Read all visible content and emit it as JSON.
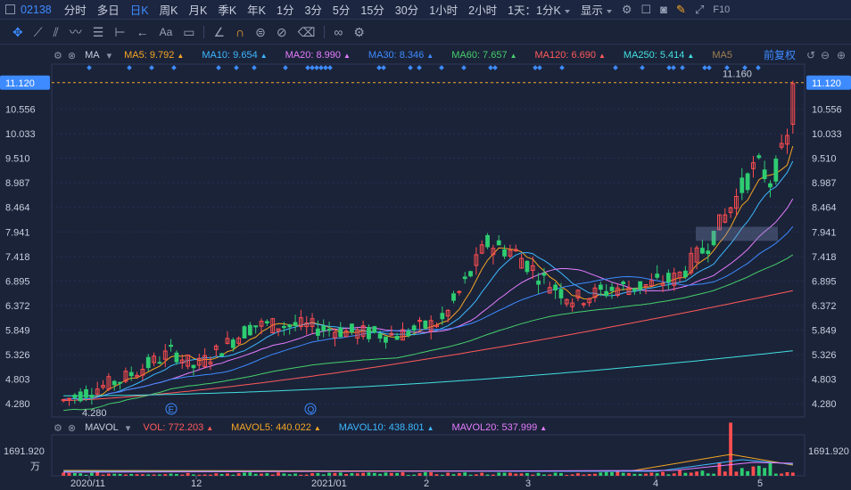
{
  "toolbar": {
    "code": "02138",
    "periods": [
      "分时",
      "多日",
      "日K",
      "周K",
      "月K",
      "季K",
      "年K",
      "1分",
      "3分",
      "5分",
      "15分",
      "30分",
      "1小时",
      "2小时"
    ],
    "active_period": "日K",
    "interval_dropdown": "1天：1分K",
    "display_dropdown": "显示"
  },
  "draw_tools": [
    "crosshair-icon",
    "line-icon",
    "channel-icon",
    "wave-icon",
    "fib-icon",
    "range-icon",
    "arrow-icon",
    "text-icon",
    "note-icon",
    "ruler-icon",
    "magnet-icon",
    "lock-icon",
    "hide-icon",
    "trash-icon",
    "link-icon",
    "settings-icon"
  ],
  "main_panel": {
    "indicator": "MA",
    "ma": [
      {
        "label": "MA5: 9.792",
        "color": "#f5a623"
      },
      {
        "label": "MA10: 9.654",
        "color": "#3db8ff"
      },
      {
        "label": "MA20: 8.990",
        "color": "#e57dff"
      },
      {
        "label": "MA30: 8.346",
        "color": "#3d8bff"
      },
      {
        "label": "MA60: 7.657",
        "color": "#45d16b"
      },
      {
        "label": "MA120: 6.690",
        "color": "#ff5a5a"
      },
      {
        "label": "MA250: 5.414",
        "color": "#42e0e0"
      },
      {
        "label": "MA5",
        "color": "#a08050"
      }
    ],
    "adjust_label": "前复权",
    "y_ticks": [
      "11.120",
      "10.556",
      "10.033",
      "9.510",
      "8.987",
      "8.464",
      "7.941",
      "7.418",
      "6.895",
      "6.372",
      "5.849",
      "5.326",
      "4.803",
      "4.280"
    ],
    "current_price": "11.120",
    "high_label": "11.160",
    "low_label": "4.280",
    "event_markers": [
      "E",
      "Q"
    ]
  },
  "volume_panel": {
    "indicator": "MAVOL",
    "items": [
      {
        "label": "VOL: 772.203",
        "color": "#ff5a5a"
      },
      {
        "label": "MAVOL5: 440.022",
        "color": "#f5a623"
      },
      {
        "label": "MAVOL10: 438.801",
        "color": "#3db8ff"
      },
      {
        "label": "MAVOL20: 537.999",
        "color": "#e57dff"
      }
    ],
    "max_label": "1691.920",
    "unit": "万"
  },
  "x_ticks": [
    "2020/11",
    "12",
    "2021/01",
    "2",
    "3",
    "4",
    "5"
  ],
  "colors": {
    "up": "#ff4d4f",
    "down": "#2ecc71",
    "accent": "#3d8bff"
  }
}
